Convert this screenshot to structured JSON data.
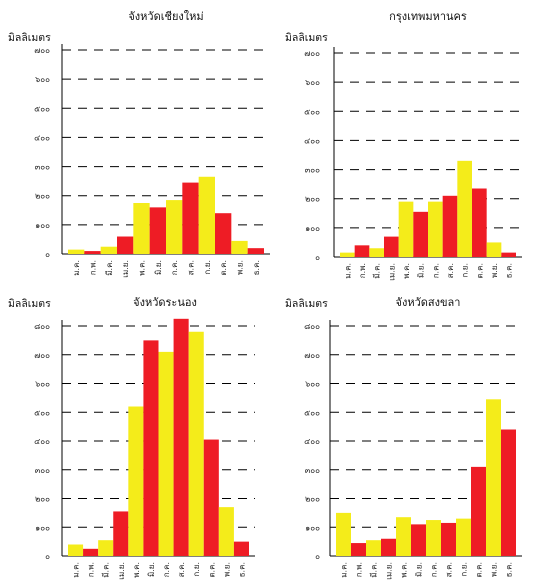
{
  "colors": {
    "yellow": "#f4ec1a",
    "red": "#ee1c25",
    "grid": "#000000",
    "text": "#111111"
  },
  "chart_data": [
    {
      "type": "bar",
      "title": "จังหวัดเชียงใหม่",
      "ylabel": "มิลลิเมตร",
      "ylim": [
        0,
        700
      ],
      "yticks": [
        0,
        100,
        200,
        300,
        400,
        500,
        600,
        700
      ],
      "ytick_labels": [
        "๐",
        "๑๐๐",
        "๒๐๐",
        "๓๐๐",
        "๔๐๐",
        "๕๐๐",
        "๖๐๐",
        "๗๐๐"
      ],
      "categories": [
        "ม.ค.",
        "ก.พ.",
        "มี.ค.",
        "เม.ย.",
        "พ.ค.",
        "มิ.ย.",
        "ก.ค.",
        "ส.ค.",
        "ก.ย.",
        "ต.ค.",
        "พ.ย.",
        "ธ.ค."
      ],
      "bar_colors": [
        "yellow",
        "red",
        "yellow",
        "red",
        "yellow",
        "red",
        "yellow",
        "red",
        "yellow",
        "red",
        "yellow",
        "red"
      ],
      "values": [
        15,
        10,
        25,
        60,
        175,
        160,
        185,
        245,
        265,
        140,
        45,
        20
      ],
      "grid": true
    },
    {
      "type": "bar",
      "title": "กรุงเทพมหานคร",
      "ylabel": "มิลลิเมตร",
      "ylim": [
        0,
        700
      ],
      "yticks": [
        0,
        100,
        200,
        300,
        400,
        500,
        600,
        700
      ],
      "ytick_labels": [
        "๐",
        "๑๐๐",
        "๒๐๐",
        "๓๐๐",
        "๔๐๐",
        "๕๐๐",
        "๖๐๐",
        "๗๐๐"
      ],
      "categories": [
        "ม.ค.",
        "ก.พ.",
        "มี.ค.",
        "เม.ย.",
        "พ.ค.",
        "มิ.ย.",
        "ก.ค.",
        "ส.ค.",
        "ก.ย.",
        "ต.ค.",
        "พ.ย.",
        "ธ.ค."
      ],
      "bar_colors": [
        "yellow",
        "red",
        "yellow",
        "red",
        "yellow",
        "red",
        "yellow",
        "red",
        "yellow",
        "red",
        "yellow",
        "red"
      ],
      "values": [
        15,
        40,
        30,
        70,
        190,
        155,
        190,
        210,
        330,
        235,
        50,
        15
      ],
      "grid": true
    },
    {
      "type": "bar",
      "title": "จังหวัดระนอง",
      "ylabel": "มิลลิเมตร",
      "ylim": [
        0,
        800
      ],
      "yticks": [
        0,
        100,
        200,
        300,
        400,
        500,
        600,
        700,
        800
      ],
      "ytick_labels": [
        "๐",
        "๑๐๐",
        "๒๐๐",
        "๓๐๐",
        "๔๐๐",
        "๕๐๐",
        "๖๐๐",
        "๗๐๐",
        "๘๐๐"
      ],
      "categories": [
        "ม.ค.",
        "ก.พ.",
        "มี.ค.",
        "เม.ย.",
        "พ.ค.",
        "มิ.ย.",
        "ก.ค.",
        "ส.ค.",
        "ก.ย.",
        "ต.ค.",
        "พ.ย.",
        "ธ.ค."
      ],
      "bar_colors": [
        "yellow",
        "red",
        "yellow",
        "red",
        "yellow",
        "red",
        "yellow",
        "red",
        "yellow",
        "red",
        "yellow",
        "red"
      ],
      "values": [
        40,
        25,
        55,
        155,
        520,
        750,
        710,
        825,
        780,
        405,
        170,
        50
      ],
      "grid": true
    },
    {
      "type": "bar",
      "title": "จังหวัดสงขลา",
      "ylabel": "มิลลิเมตร",
      "ylim": [
        0,
        800
      ],
      "yticks": [
        0,
        100,
        200,
        300,
        400,
        500,
        600,
        700,
        800
      ],
      "ytick_labels": [
        "๐",
        "๑๐๐",
        "๒๐๐",
        "๓๐๐",
        "๔๐๐",
        "๕๐๐",
        "๖๐๐",
        "๗๐๐",
        "๘๐๐"
      ],
      "categories": [
        "ม.ค.",
        "ก.พ.",
        "มี.ค.",
        "เม.ย.",
        "พ.ค.",
        "มิ.ย.",
        "ก.ค.",
        "ส.ค.",
        "ก.ย.",
        "ต.ค.",
        "พ.ย.",
        "ธ.ค."
      ],
      "bar_colors": [
        "yellow",
        "red",
        "yellow",
        "red",
        "yellow",
        "red",
        "yellow",
        "red",
        "yellow",
        "red",
        "yellow",
        "red"
      ],
      "values": [
        150,
        45,
        55,
        60,
        135,
        110,
        125,
        115,
        130,
        310,
        545,
        440
      ],
      "grid": true
    }
  ]
}
